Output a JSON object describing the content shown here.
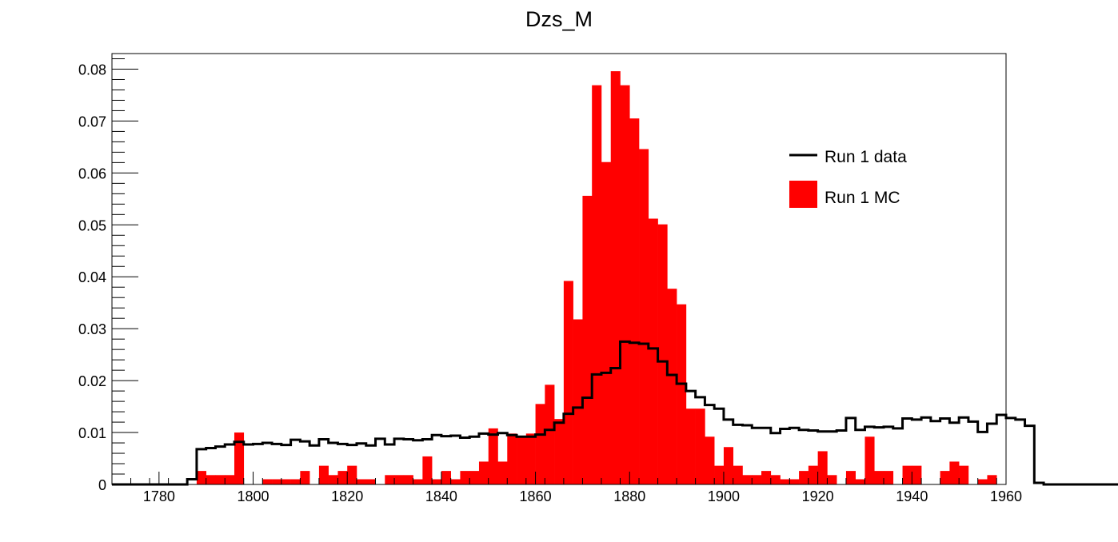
{
  "chart_data": {
    "type": "histogram",
    "title": "Dzs_M",
    "xlabel": "",
    "ylabel": "",
    "xlim": [
      1770,
      1960
    ],
    "ylim": [
      0,
      0.083
    ],
    "x_ticks": [
      1780,
      1800,
      1820,
      1840,
      1860,
      1880,
      1900,
      1920,
      1940,
      1960
    ],
    "y_ticks": [
      0,
      0.01,
      0.02,
      0.03,
      0.04,
      0.05,
      0.06,
      0.07,
      0.08
    ],
    "x_tick_labels": [
      "1780",
      "1800",
      "1820",
      "1840",
      "1860",
      "1880",
      "1900",
      "1920",
      "1940",
      "1960"
    ],
    "y_tick_labels": [
      "0",
      "0.01",
      "0.02",
      "0.03",
      "0.04",
      "0.05",
      "0.06",
      "0.07",
      "0.08"
    ],
    "grid": false,
    "legend_position": "top-right",
    "bin_edges_start": 1770,
    "bin_width": 2,
    "series": [
      {
        "name": "Run 1 data",
        "style": "step-line",
        "color": "#000000",
        "values": [
          0,
          0,
          0,
          0,
          0,
          0,
          0,
          0,
          0.001,
          0.0068,
          0.007,
          0.0073,
          0.0077,
          0.0082,
          0.0077,
          0.0078,
          0.008,
          0.0078,
          0.0076,
          0.0086,
          0.0083,
          0.0075,
          0.0087,
          0.008,
          0.0078,
          0.0076,
          0.0079,
          0.0075,
          0.0088,
          0.0077,
          0.0088,
          0.0087,
          0.0085,
          0.0087,
          0.0095,
          0.0093,
          0.0094,
          0.009,
          0.0092,
          0.0098,
          0.0096,
          0.0099,
          0.0095,
          0.0092,
          0.0092,
          0.0096,
          0.0105,
          0.0119,
          0.0136,
          0.0148,
          0.0167,
          0.0212,
          0.0215,
          0.0224,
          0.0275,
          0.0273,
          0.0271,
          0.0262,
          0.0237,
          0.0211,
          0.0194,
          0.018,
          0.0168,
          0.0153,
          0.0146,
          0.0125,
          0.0115,
          0.0114,
          0.0109,
          0.0109,
          0.0099,
          0.0107,
          0.0109,
          0.0105,
          0.0104,
          0.0102,
          0.0102,
          0.0104,
          0.0128,
          0.0105,
          0.0111,
          0.011,
          0.0111,
          0.0108,
          0.0127,
          0.0125,
          0.0129,
          0.0122,
          0.0127,
          0.0119,
          0.0129,
          0.0121,
          0.0101,
          0.0117,
          0.0134,
          0.0128,
          0.0125,
          0.0113,
          0.0003,
          0,
          0,
          0,
          0,
          0,
          0,
          0,
          0
        ]
      },
      {
        "name": "Run 1 MC",
        "style": "filled-bars",
        "color": "#ff0000",
        "values": [
          0,
          0,
          0,
          0,
          0,
          0,
          0,
          0,
          0,
          0.0026,
          0.0018,
          0.0018,
          0.0018,
          0.01,
          0,
          0,
          0.001,
          0.001,
          0.001,
          0.001,
          0.0026,
          0,
          0.0036,
          0.0018,
          0.0026,
          0.0036,
          0.001,
          0.001,
          0,
          0.0018,
          0.0018,
          0.0018,
          0.001,
          0.0054,
          0.001,
          0.0026,
          0.001,
          0.0026,
          0.0026,
          0.0044,
          0.0108,
          0.0044,
          0.0098,
          0.0092,
          0.0098,
          0.0155,
          0.0192,
          0.0126,
          0.0392,
          0.0318,
          0.0556,
          0.0769,
          0.0621,
          0.0796,
          0.0769,
          0.0705,
          0.0646,
          0.0512,
          0.0501,
          0.0377,
          0.0347,
          0.0146,
          0.0146,
          0.0092,
          0.0036,
          0.0072,
          0.0036,
          0.0018,
          0.0018,
          0.0026,
          0.0018,
          0.001,
          0.001,
          0.0026,
          0.0036,
          0.0064,
          0.0018,
          0,
          0.0026,
          0.001,
          0.0092,
          0.0026,
          0.0026,
          0,
          0.0036,
          0.0036,
          0,
          0,
          0.0026,
          0.0044,
          0.0036,
          0,
          0.001,
          0.0018,
          0,
          0,
          0,
          0,
          0,
          0,
          0,
          0,
          0,
          0,
          0
        ]
      }
    ]
  }
}
